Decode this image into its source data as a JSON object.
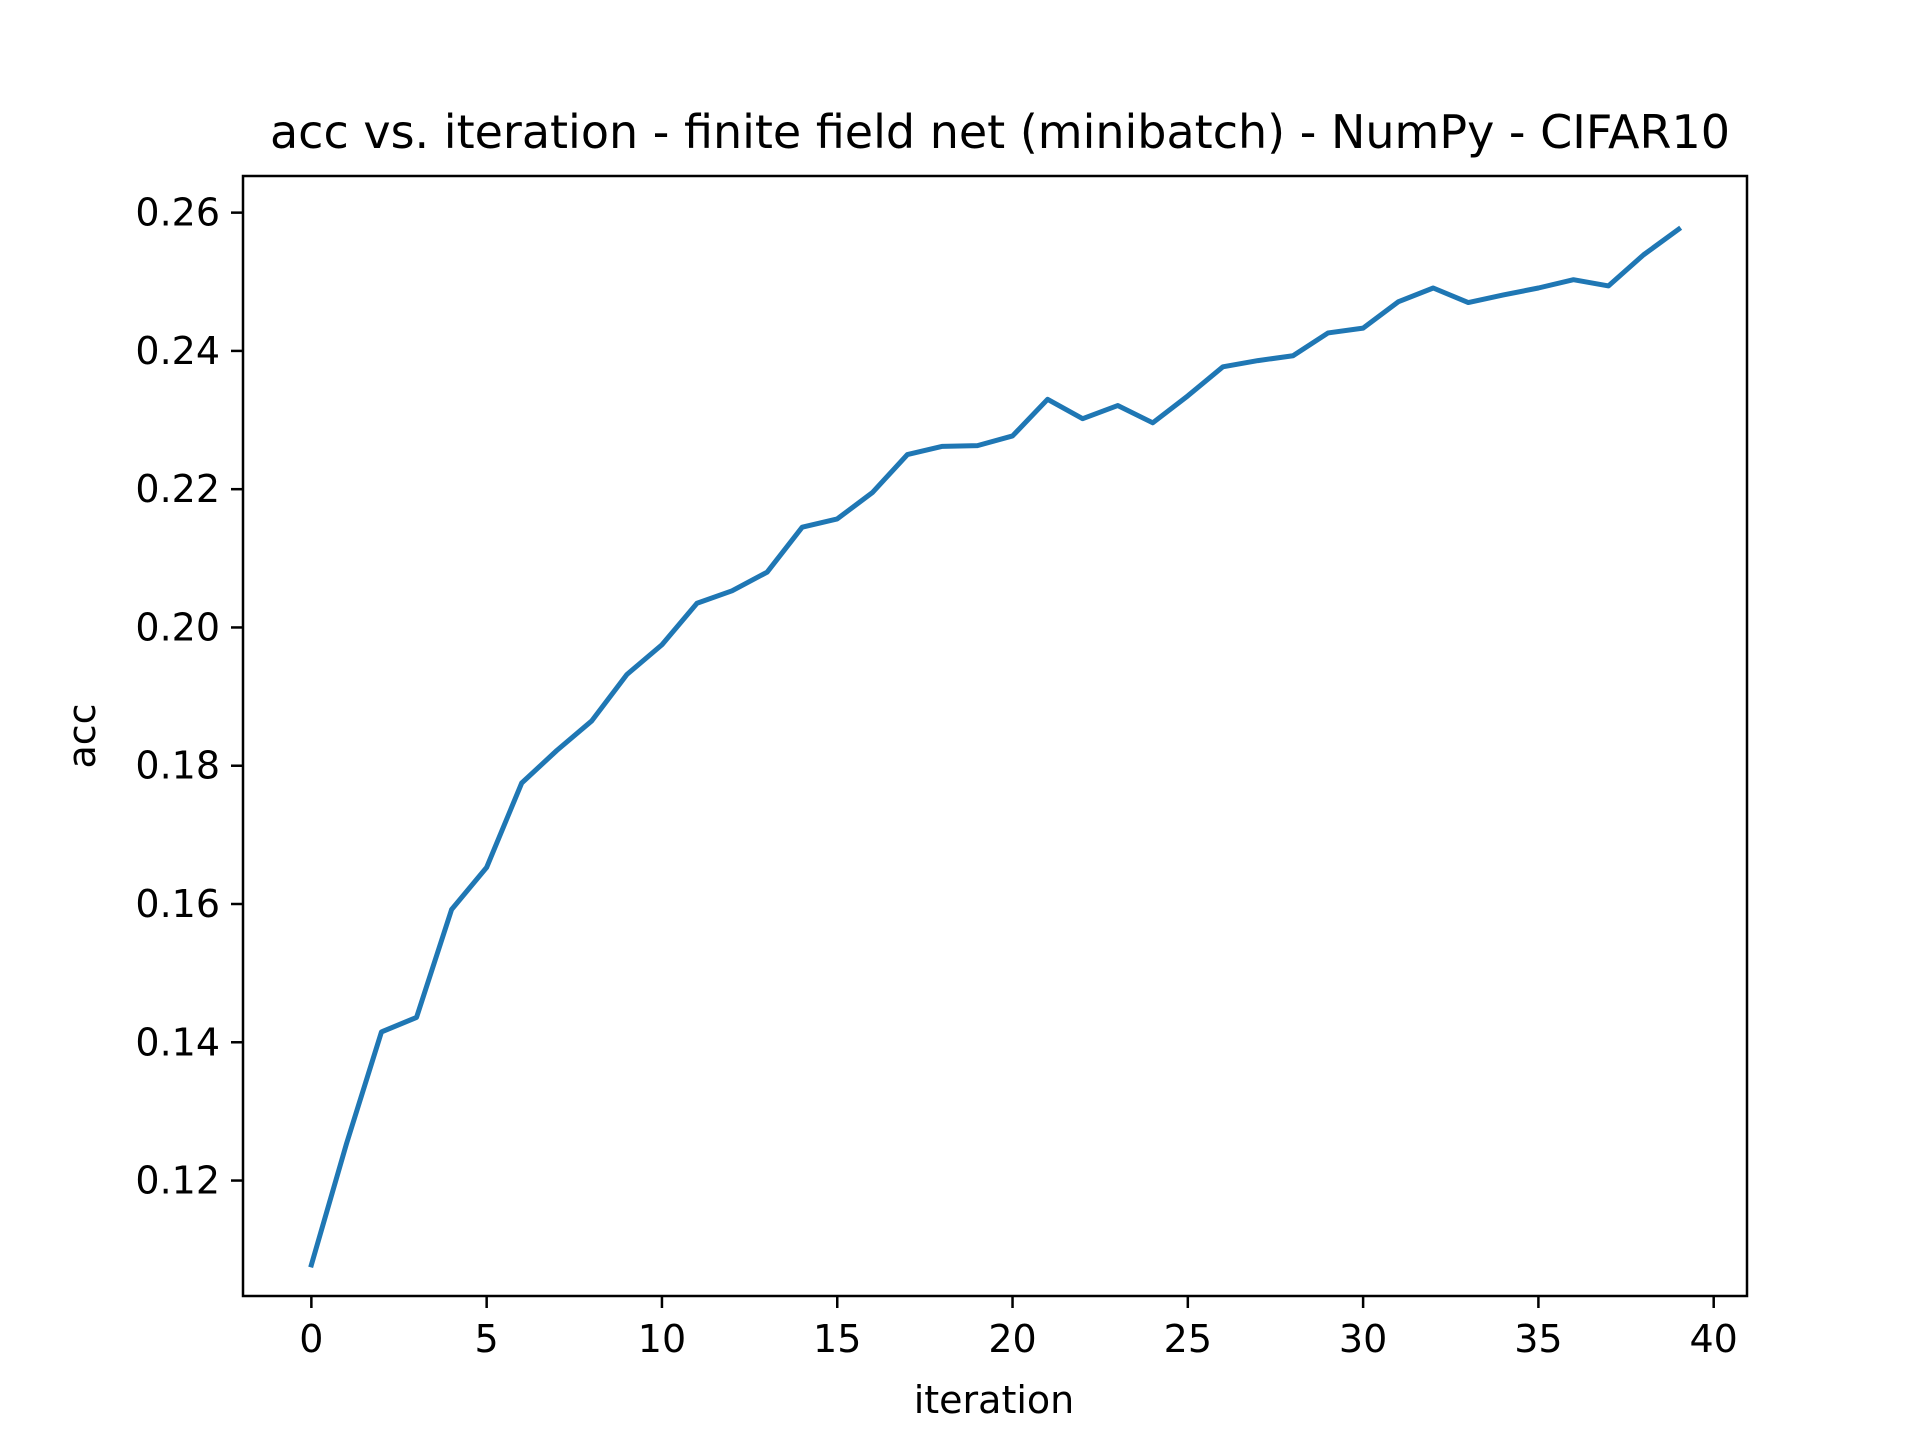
{
  "chart_data": {
    "type": "line",
    "title": "acc vs. iteration - finite field net (minibatch) - NumPy - CIFAR10",
    "xlabel": "iteration",
    "ylabel": "acc",
    "xlim": [
      -1.95,
      40.95
    ],
    "ylim": [
      0.1033,
      0.2653
    ],
    "xticks": [
      0,
      5,
      10,
      15,
      20,
      25,
      30,
      35,
      40
    ],
    "xtick_labels": [
      "0",
      "5",
      "10",
      "15",
      "20",
      "25",
      "30",
      "35",
      "40"
    ],
    "yticks": [
      0.12,
      0.14,
      0.16,
      0.18,
      0.2,
      0.22,
      0.24,
      0.26
    ],
    "ytick_labels": [
      "0.12",
      "0.14",
      "0.16",
      "0.18",
      "0.20",
      "0.22",
      "0.24",
      "0.26"
    ],
    "grid": false,
    "series": [
      {
        "color": "#1f77b4",
        "x": [
          0,
          1,
          2,
          3,
          4,
          5,
          6,
          7,
          8,
          9,
          10,
          11,
          12,
          13,
          14,
          15,
          16,
          17,
          18,
          19,
          20,
          21,
          22,
          23,
          24,
          25,
          26,
          27,
          28,
          29,
          30,
          31,
          32,
          33,
          34,
          35,
          36,
          37,
          38,
          39
        ],
        "y": [
          0.1078,
          0.1253,
          0.1415,
          0.1436,
          0.1592,
          0.1653,
          0.1775,
          0.1822,
          0.1865,
          0.1932,
          0.1975,
          0.2035,
          0.2053,
          0.208,
          0.2145,
          0.2157,
          0.2195,
          0.225,
          0.2262,
          0.2263,
          0.2277,
          0.233,
          0.2302,
          0.2321,
          0.2296,
          0.2335,
          0.2377,
          0.2386,
          0.2393,
          0.2426,
          0.2433,
          0.2471,
          0.2491,
          0.247,
          0.2481,
          0.2491,
          0.2503,
          0.2494,
          0.2539,
          0.2576
        ]
      }
    ]
  }
}
